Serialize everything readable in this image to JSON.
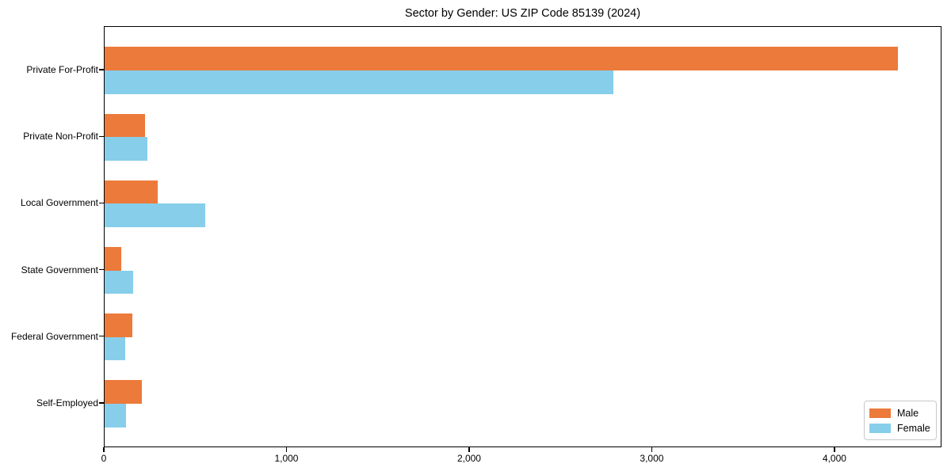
{
  "figure": {
    "title": "Sector by Gender: US ZIP Code 85139 (2024)"
  },
  "chart_data": {
    "type": "bar",
    "orientation": "horizontal",
    "title": "Sector by Gender: US ZIP Code 85139 (2024)",
    "categories": [
      "Private For-Profit",
      "Private Non-Profit",
      "Local Government",
      "State Government",
      "Federal Government",
      "Self-Employed"
    ],
    "series": [
      {
        "name": "Male",
        "color": "#EC7A3B",
        "values": [
          4350,
          220,
          290,
          90,
          150,
          205
        ]
      },
      {
        "name": "Female",
        "color": "#87CEEB",
        "values": [
          2790,
          235,
          550,
          155,
          112,
          117
        ]
      }
    ],
    "xlabel": "",
    "ylabel": "",
    "xlim": [
      0,
      4586
    ],
    "xticks": [
      0,
      1000,
      2000,
      3000,
      4000
    ],
    "xtick_labels": [
      "0",
      "1,000",
      "2,000",
      "3,000",
      "4,000"
    ],
    "grid": false,
    "legend": {
      "position": "lower right",
      "labels": [
        "Male",
        "Female"
      ]
    }
  }
}
